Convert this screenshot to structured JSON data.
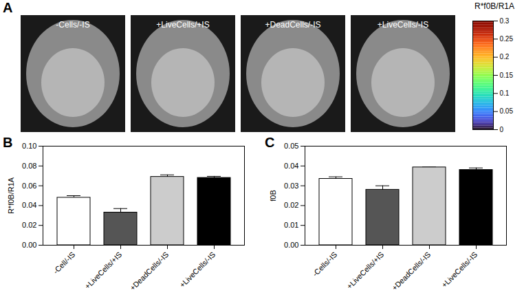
{
  "chart_data": [
    {
      "type": "image_panel",
      "panel": "A",
      "categories": [
        "-Cells/-IS",
        "+LiveCells/+IS",
        "+DeadCells/-IS",
        "+LiveCells/-IS"
      ],
      "colorbar": {
        "label": "R*f0B/R1A",
        "range": [
          0,
          0.3
        ],
        "ticks": [
          0,
          0.05,
          0.1,
          0.15,
          0.2,
          0.25,
          0.3
        ]
      }
    },
    {
      "type": "bar",
      "panel": "B",
      "categories": [
        "-Cell/-IS",
        "+LiveCells/+IS",
        "+DeadCells/-IS",
        "+LiveCells/-IS"
      ],
      "values": [
        0.048,
        0.033,
        0.069,
        0.068
      ],
      "errors": [
        0.002,
        0.004,
        0.002,
        0.0015
      ],
      "colors": [
        "#ffffff",
        "#555555",
        "#cccccc",
        "#000000"
      ],
      "y_label": "R*f0B/R1A",
      "ylim": [
        0,
        0.1
      ],
      "yticks": [
        {
          "value": 0,
          "label": "0.00"
        },
        {
          "value": 0.02,
          "label": "0.02"
        },
        {
          "value": 0.04,
          "label": "0.04"
        },
        {
          "value": 0.06,
          "label": "0.06"
        },
        {
          "value": 0.08,
          "label": "0.08"
        },
        {
          "value": 0.1,
          "label": "0.10"
        }
      ]
    },
    {
      "type": "bar",
      "panel": "C",
      "categories": [
        "-Cells/-IS",
        "+LiveCells/+IS",
        "+DeadCells/-IS",
        "+LiveCells/-IS"
      ],
      "values": [
        0.0335,
        0.028,
        0.0393,
        0.038
      ],
      "errors": [
        0.001,
        0.002,
        0.0002,
        0.001
      ],
      "colors": [
        "#ffffff",
        "#555555",
        "#cccccc",
        "#000000"
      ],
      "y_label": "f0B",
      "ylim": [
        0,
        0.05
      ],
      "yticks": [
        {
          "value": 0,
          "label": "0.00"
        },
        {
          "value": 0.01,
          "label": "0.01"
        },
        {
          "value": 0.02,
          "label": "0.02"
        },
        {
          "value": 0.03,
          "label": "0.03"
        },
        {
          "value": 0.04,
          "label": "0.04"
        },
        {
          "value": 0.05,
          "label": "0.05"
        }
      ]
    }
  ]
}
